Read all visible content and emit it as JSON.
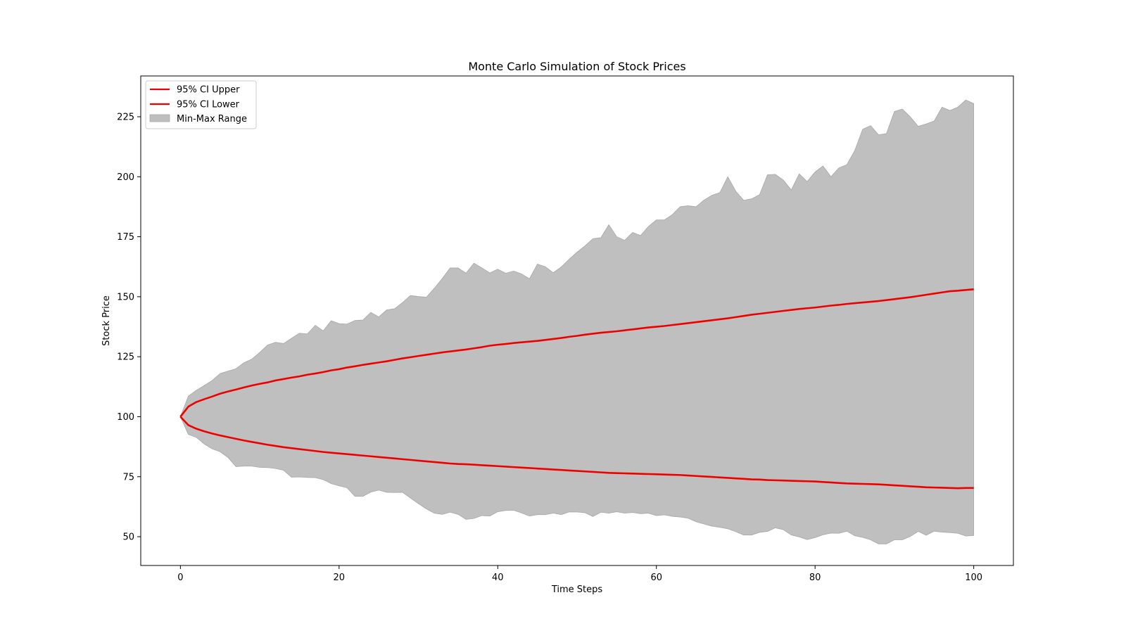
{
  "chart_data": {
    "type": "area",
    "title": "Monte Carlo Simulation of Stock Prices",
    "xlabel": "Time Steps",
    "ylabel": "Stock Price",
    "xlim": [
      -5,
      105
    ],
    "ylim": [
      38,
      242
    ],
    "xticks": [
      0,
      20,
      40,
      60,
      80,
      100
    ],
    "yticks": [
      50,
      75,
      100,
      125,
      150,
      175,
      200,
      225
    ],
    "grid": false,
    "legend_position": "top-left",
    "colors": {
      "ci": "#ee0000",
      "range_fill": "#bfbfbf",
      "range_edge": "#a8a8a8"
    },
    "legend": [
      {
        "label": "95% CI Upper",
        "kind": "line"
      },
      {
        "label": "95% CI Lower",
        "kind": "line"
      },
      {
        "label": "Min-Max Range",
        "kind": "patch"
      }
    ],
    "x_start": 0,
    "x_step": 1,
    "series": [
      {
        "name": "95% CI Upper",
        "values": [
          100,
          104.2,
          106.1,
          107.3,
          108.4,
          109.6,
          110.5,
          111.3,
          112.2,
          113.0,
          113.7,
          114.3,
          115.1,
          115.7,
          116.3,
          116.8,
          117.5,
          118.0,
          118.6,
          119.3,
          119.8,
          120.5,
          121.0,
          121.6,
          122.1,
          122.6,
          123.1,
          123.7,
          124.3,
          124.8,
          125.3,
          125.8,
          126.3,
          126.8,
          127.2,
          127.6,
          128.0,
          128.5,
          129.0,
          129.6,
          130.0,
          130.3,
          130.7,
          131.0,
          131.3,
          131.6,
          132.0,
          132.4,
          132.8,
          133.3,
          133.7,
          134.2,
          134.6,
          135.0,
          135.3,
          135.6,
          136.0,
          136.4,
          136.8,
          137.2,
          137.5,
          137.8,
          138.2,
          138.6,
          139.0,
          139.4,
          139.8,
          140.2,
          140.6,
          141.0,
          141.5,
          142.0,
          142.5,
          142.9,
          143.3,
          143.7,
          144.1,
          144.5,
          144.9,
          145.2,
          145.5,
          145.9,
          146.3,
          146.6,
          147.0,
          147.3,
          147.6,
          147.9,
          148.2,
          148.6,
          149.0,
          149.4,
          149.8,
          150.3,
          150.8,
          151.3,
          151.8,
          152.3,
          152.5,
          152.8,
          153.1
        ]
      },
      {
        "name": "95% CI Lower",
        "values": [
          100,
          96.5,
          95.0,
          93.9,
          93.0,
          92.2,
          91.5,
          90.8,
          90.1,
          89.5,
          88.9,
          88.3,
          87.8,
          87.3,
          86.9,
          86.5,
          86.1,
          85.7,
          85.3,
          85.0,
          84.7,
          84.4,
          84.1,
          83.8,
          83.5,
          83.2,
          82.9,
          82.6,
          82.3,
          82.0,
          81.7,
          81.4,
          81.1,
          80.8,
          80.5,
          80.3,
          80.2,
          80.0,
          79.8,
          79.6,
          79.4,
          79.2,
          79.0,
          78.8,
          78.6,
          78.4,
          78.2,
          78.0,
          77.8,
          77.6,
          77.4,
          77.2,
          77.0,
          76.8,
          76.6,
          76.5,
          76.4,
          76.3,
          76.2,
          76.1,
          76.0,
          75.9,
          75.8,
          75.7,
          75.5,
          75.3,
          75.1,
          74.9,
          74.7,
          74.5,
          74.3,
          74.1,
          73.9,
          73.8,
          73.6,
          73.5,
          73.4,
          73.3,
          73.2,
          73.1,
          73.0,
          72.8,
          72.6,
          72.4,
          72.2,
          72.1,
          72.0,
          71.9,
          71.8,
          71.6,
          71.4,
          71.2,
          71.0,
          70.8,
          70.6,
          70.5,
          70.4,
          70.3,
          70.2,
          70.3,
          70.3
        ]
      },
      {
        "name": "Min-Max Range (max)",
        "values": [
          100,
          108.6,
          111.0,
          113.0,
          115.1,
          118.0,
          119.0,
          120.0,
          122.5,
          124.0,
          126.8,
          129.9,
          131.0,
          130.5,
          132.7,
          134.8,
          134.5,
          138.1,
          135.8,
          140.0,
          138.8,
          138.6,
          140.1,
          140.3,
          143.5,
          141.6,
          144.5,
          145.0,
          147.6,
          150.5,
          150.1,
          149.8,
          153.5,
          157.6,
          162.0,
          162.0,
          159.8,
          164.0,
          162.0,
          159.9,
          161.5,
          159.8,
          160.7,
          159.5,
          157.5,
          163.6,
          162.5,
          160.0,
          162.4,
          165.6,
          168.6,
          171.2,
          174.2,
          174.6,
          180.0,
          175.0,
          173.5,
          176.8,
          175.5,
          179.3,
          182.0,
          182.0,
          184.2,
          187.5,
          187.9,
          187.5,
          190.3,
          192.3,
          193.4,
          200.0,
          194.0,
          190.2,
          190.8,
          192.5,
          200.8,
          201.0,
          198.6,
          194.5,
          201.2,
          198.0,
          202.0,
          204.5,
          200.0,
          203.7,
          205.0,
          210.9,
          219.8,
          221.3,
          217.5,
          218.0,
          227.2,
          228.2,
          225.0,
          221.0,
          222.0,
          223.2,
          229.0,
          227.6,
          229.0,
          232.0,
          230.5
        ]
      },
      {
        "name": "Min-Max Range (min)",
        "values": [
          100,
          92.6,
          91.4,
          88.6,
          86.6,
          85.4,
          83.0,
          79.2,
          79.4,
          79.4,
          78.9,
          78.8,
          78.4,
          77.7,
          74.8,
          74.9,
          74.7,
          74.6,
          73.8,
          72.1,
          71.2,
          70.4,
          66.8,
          66.8,
          68.6,
          69.4,
          68.5,
          68.4,
          68.5,
          66.1,
          63.8,
          61.6,
          59.8,
          59.3,
          60.2,
          59.3,
          57.2,
          57.6,
          58.8,
          58.6,
          60.4,
          60.9,
          61.0,
          59.9,
          58.6,
          59.2,
          59.2,
          59.8,
          59.2,
          60.3,
          60.3,
          60.0,
          58.4,
          60.2,
          59.8,
          60.4,
          59.8,
          60.1,
          59.6,
          59.8,
          58.8,
          59.1,
          58.5,
          58.2,
          57.7,
          56.2,
          55.3,
          54.4,
          53.9,
          53.3,
          52.1,
          50.7,
          50.7,
          51.8,
          52.2,
          53.7,
          52.9,
          50.7,
          49.9,
          48.8,
          49.6,
          50.8,
          51.5,
          51.4,
          52.3,
          50.4,
          49.7,
          48.7,
          47.0,
          47.0,
          48.7,
          48.7,
          50.1,
          52.2,
          50.6,
          52.3,
          51.9,
          51.7,
          51.4,
          50.3,
          50.5
        ]
      }
    ]
  }
}
